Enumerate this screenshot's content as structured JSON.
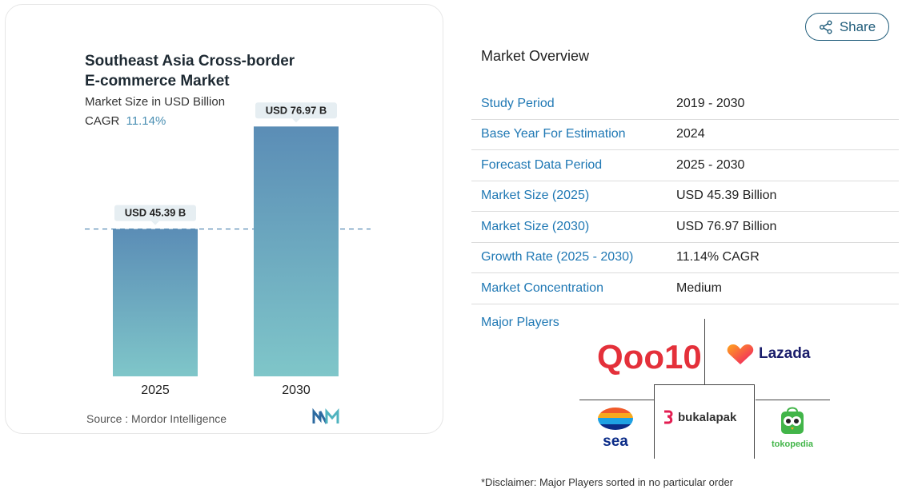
{
  "chart_data": {
    "type": "bar",
    "title_line1": "Southeast Asia Cross-border",
    "title_line2": "E-commerce Market",
    "subtitle": "Market Size in USD Billion",
    "cagr_label": "CAGR",
    "cagr_value": "11.14%",
    "categories": [
      "2025",
      "2030"
    ],
    "values": [
      45.39,
      76.97
    ],
    "data_labels": [
      "USD 45.39 B",
      "USD 76.97 B"
    ],
    "ylim": [
      0,
      80
    ],
    "grid": false,
    "reference_line_value": 45.39,
    "colors": {
      "bar_top": "#5b8db6",
      "bar_bottom": "#7fc6c9",
      "label_bg": "#e6eef2"
    }
  },
  "source": {
    "label": "Source :",
    "name": "Mordor Intelligence"
  },
  "share": {
    "label": "Share",
    "icon": "share-icon"
  },
  "overview": {
    "title": "Market Overview",
    "rows": [
      {
        "key": "Study Period",
        "value": "2019 - 2030"
      },
      {
        "key": "Base Year For Estimation",
        "value": "2024"
      },
      {
        "key": "Forecast Data Period",
        "value": "2025 - 2030"
      },
      {
        "key": "Market Size (2025)",
        "value": "USD 45.39 Billion"
      },
      {
        "key": "Market Size (2030)",
        "value": "USD 76.97 Billion"
      },
      {
        "key": "Growth Rate (2025 - 2030)",
        "value": "11.14% CAGR"
      },
      {
        "key": "Market Concentration",
        "value": "Medium"
      }
    ],
    "major_players_label": "Major Players"
  },
  "players": {
    "qoo10": "Qoo10",
    "lazada": "Lazada",
    "sea": "sea",
    "bukalapak": "bukalapak",
    "tokopedia": "tokopedia"
  },
  "disclaimer": "*Disclaimer: Major Players sorted in no particular order",
  "accent": "#1f78b4"
}
